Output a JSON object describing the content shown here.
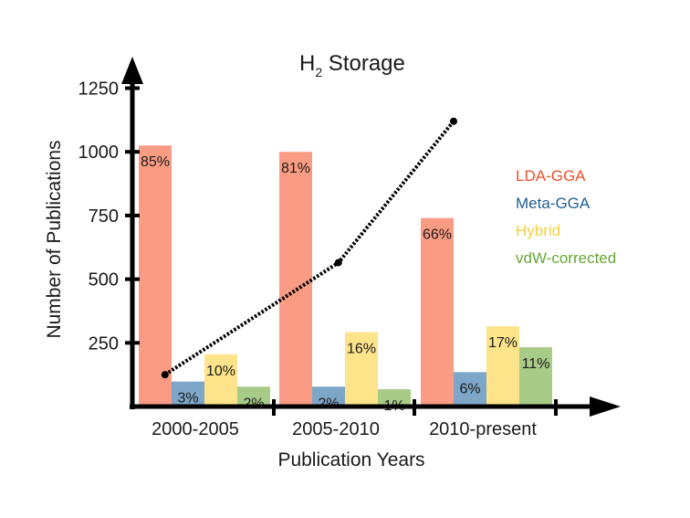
{
  "chart_data": {
    "type": "bar",
    "title_main": "H",
    "title_sub": "2",
    "title_rest": " Storage",
    "xlabel": "Publication Years",
    "ylabel": "Number of Publications",
    "categories": [
      "2000-2005",
      "2005-2010",
      "2010-present"
    ],
    "ylim": [
      0,
      1400
    ],
    "yticks": [
      1250,
      1000,
      750,
      500,
      250
    ],
    "series": [
      {
        "name": "LDA-GGA",
        "color": "#fa9c84",
        "legend_color": "#f0502e",
        "values": [
          1025,
          1000,
          740
        ],
        "labels": [
          "85%",
          "81%",
          "66%"
        ]
      },
      {
        "name": "Meta-GGA",
        "color": "#7ea6c8",
        "legend_color": "#1f5f94",
        "values": [
          98,
          78,
          135
        ],
        "labels": [
          "3%",
          "2%",
          "6%"
        ]
      },
      {
        "name": "Hybrid",
        "color": "#fde48a",
        "legend_color": "#f7cf3b",
        "values": [
          205,
          292,
          315
        ],
        "labels": [
          "10%",
          "16%",
          "17%"
        ]
      },
      {
        "name": "vdW-corrected",
        "color": "#a8cb88",
        "legend_color": "#66a636",
        "values": [
          78,
          68,
          233
        ],
        "labels": [
          "2%",
          "1%",
          "11%"
        ]
      }
    ],
    "trend_line": {
      "x_index": [
        0.2,
        1.45,
        2.25
      ],
      "values": [
        125,
        565,
        1120
      ],
      "color": "#000000"
    },
    "grid": false
  }
}
